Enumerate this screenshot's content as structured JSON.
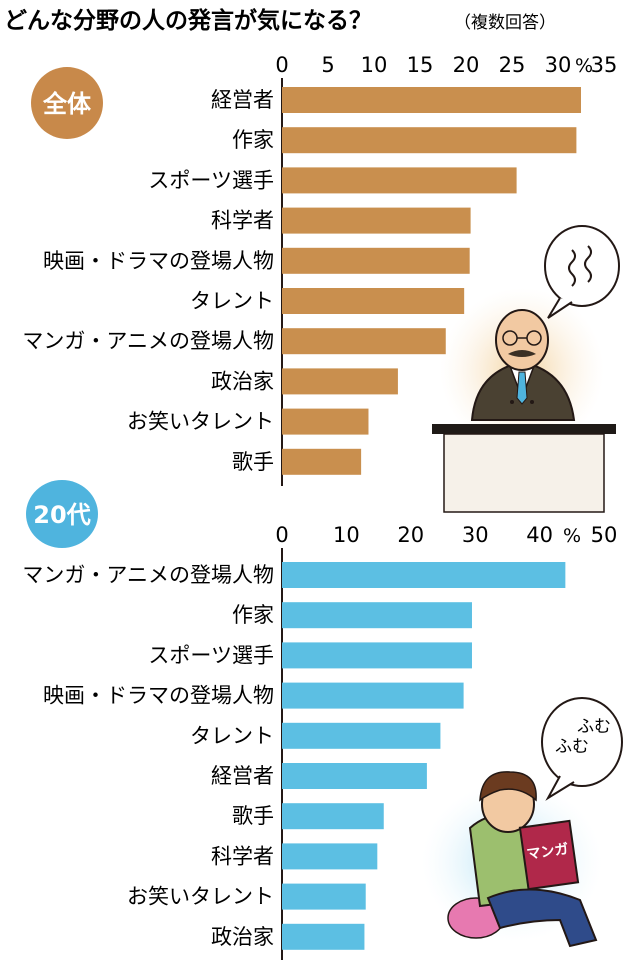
{
  "title": "どんな分野の人の発言が気になる？",
  "title_note": "（複数回答）",
  "colors": {
    "top_bar": "#c98f4e",
    "bottom_bar": "#5cbfe3",
    "top_badge": "#c8894a",
    "bottom_badge": "#4fb4de",
    "text": "#231815"
  },
  "chart_data": [
    {
      "type": "bar",
      "orientation": "horizontal",
      "badge": "全体",
      "unit_label": "%",
      "xlim": [
        0,
        35
      ],
      "xticks": [
        "0",
        "5",
        "10",
        "15",
        "20",
        "25",
        "30",
        "35"
      ],
      "xtick_values": [
        0,
        5,
        10,
        15,
        20,
        25,
        30,
        35
      ],
      "categories": [
        "経営者",
        "作家",
        "スポーツ選手",
        "科学者",
        "映画・ドラマの登場人物",
        "タレント",
        "マンガ・アニメの登場人物",
        "政治家",
        "お笑いタレント",
        "歌手"
      ],
      "values": [
        32.5,
        32.0,
        25.5,
        20.5,
        20.4,
        19.8,
        17.8,
        12.6,
        9.4,
        8.6
      ]
    },
    {
      "type": "bar",
      "orientation": "horizontal",
      "badge": "20代",
      "unit_label": "%",
      "xlim": [
        0,
        50
      ],
      "xticks": [
        "0",
        "10",
        "20",
        "30",
        "40",
        "50"
      ],
      "xtick_values": [
        0,
        10,
        20,
        30,
        40,
        50
      ],
      "categories": [
        "マンガ・アニメの登場人物",
        "作家",
        "スポーツ選手",
        "映画・ドラマの登場人物",
        "タレント",
        "経営者",
        "歌手",
        "科学者",
        "お笑いタレント",
        "政治家"
      ],
      "values": [
        44.0,
        29.5,
        29.5,
        28.2,
        24.6,
        22.5,
        15.8,
        14.8,
        13.0,
        12.8
      ]
    }
  ],
  "illustrations": {
    "top_icon": "businessman-at-podium-icon",
    "top_bubble_glyph": "〰〰",
    "bottom_icon": "person-reading-manga-icon",
    "bottom_bubble_text_1": "ふむ",
    "bottom_bubble_text_2": "ふむ",
    "book_label": "マンガ"
  }
}
